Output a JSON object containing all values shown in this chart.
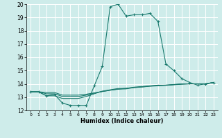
{
  "title": "",
  "xlabel": "Humidex (Indice chaleur)",
  "xlim": [
    -0.5,
    23.5
  ],
  "ylim": [
    12,
    20
  ],
  "xticks": [
    0,
    1,
    2,
    3,
    4,
    5,
    6,
    7,
    8,
    9,
    10,
    11,
    12,
    13,
    14,
    15,
    16,
    17,
    18,
    19,
    20,
    21,
    22,
    23
  ],
  "yticks": [
    12,
    13,
    14,
    15,
    16,
    17,
    18,
    19,
    20
  ],
  "background_color": "#ceecea",
  "grid_color": "#ffffff",
  "line_color": "#1a7a6e",
  "series": [
    {
      "x": [
        0,
        1,
        2,
        3,
        4,
        5,
        6,
        7,
        8,
        9,
        10,
        11,
        12,
        13,
        14,
        15,
        16,
        17,
        18,
        19,
        20,
        21,
        22,
        23
      ],
      "y": [
        13.4,
        13.4,
        13.1,
        13.2,
        12.55,
        12.38,
        12.38,
        12.38,
        13.85,
        15.3,
        19.8,
        20.0,
        19.1,
        19.2,
        19.2,
        19.3,
        18.7,
        15.5,
        15.0,
        14.4,
        14.1,
        13.9,
        14.0,
        14.1
      ],
      "marker": "+"
    },
    {
      "x": [
        0,
        1,
        2,
        3,
        4,
        5,
        6,
        7,
        8,
        9,
        10,
        11,
        12,
        13,
        14,
        15,
        16,
        17,
        18,
        19,
        20,
        21,
        22,
        23
      ],
      "y": [
        13.4,
        13.4,
        13.1,
        13.1,
        12.9,
        12.9,
        12.9,
        13.05,
        13.25,
        13.45,
        13.55,
        13.65,
        13.65,
        13.75,
        13.8,
        13.85,
        13.9,
        13.9,
        13.95,
        14.0,
        14.0,
        14.0,
        14.0,
        14.1
      ],
      "marker": null
    },
    {
      "x": [
        0,
        1,
        2,
        3,
        4,
        5,
        6,
        7,
        8,
        9,
        10,
        11,
        12,
        13,
        14,
        15,
        16,
        17,
        18,
        19,
        20,
        21,
        22,
        23
      ],
      "y": [
        13.4,
        13.4,
        13.25,
        13.25,
        13.05,
        13.05,
        13.05,
        13.15,
        13.3,
        13.42,
        13.52,
        13.6,
        13.62,
        13.72,
        13.76,
        13.82,
        13.85,
        13.88,
        13.93,
        13.97,
        14.0,
        14.0,
        14.0,
        14.1
      ],
      "marker": null
    },
    {
      "x": [
        0,
        1,
        2,
        3,
        4,
        5,
        6,
        7,
        8,
        9,
        10,
        11,
        12,
        13,
        14,
        15,
        16,
        17,
        18,
        19,
        20,
        21,
        22,
        23
      ],
      "y": [
        13.4,
        13.4,
        13.35,
        13.35,
        13.15,
        13.15,
        13.15,
        13.22,
        13.32,
        13.42,
        13.52,
        13.6,
        13.67,
        13.72,
        13.77,
        13.83,
        13.88,
        13.9,
        13.94,
        13.98,
        14.0,
        14.0,
        14.0,
        14.1
      ],
      "marker": null
    }
  ]
}
